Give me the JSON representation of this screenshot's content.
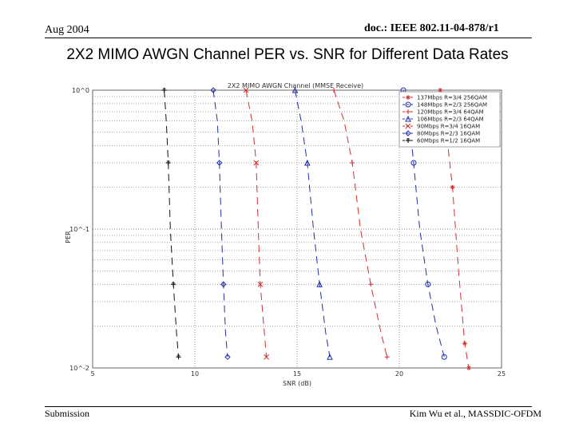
{
  "header": {
    "date": "Aug 2004",
    "doc": "doc.: IEEE 802.11-04-878/r1"
  },
  "slide_title": "2X2 MIMO AWGN Channel PER vs. SNR for Different Data Rates",
  "footer": {
    "left": "Submission",
    "right": "Kim Wu et al., MASSDIC-OFDM"
  },
  "colors": {
    "blue": "#1f2fa8",
    "red": "#d03030",
    "black": "#111111",
    "grid": "#555555"
  },
  "chart_data": {
    "type": "line",
    "title": "2X2 MIMO AWGN Channel (MMSE Receive)",
    "xlabel": "SNR (dB)",
    "ylabel": "PER",
    "xlim": [
      5,
      25
    ],
    "ylim_log10": [
      -2,
      0
    ],
    "x_ticks": [
      5,
      10,
      15,
      20,
      25
    ],
    "y_tick_labels": [
      "10^0",
      "10^-1",
      "10^-2"
    ],
    "y_tick_values": [
      1,
      0.1,
      0.01
    ],
    "grid": true,
    "legend_position": "top-right",
    "series": [
      {
        "name": "137Mbps R=3/4 256QAM",
        "color": "#d03030",
        "marker": "star",
        "points": [
          [
            22.0,
            1.0
          ],
          [
            22.3,
            0.5
          ],
          [
            22.6,
            0.2
          ],
          [
            22.9,
            0.05
          ],
          [
            23.2,
            0.015
          ],
          [
            23.4,
            0.01
          ]
        ]
      },
      {
        "name": "148Mbps R=2/3 256QAM",
        "color": "#1f2fa8",
        "marker": "circle",
        "points": [
          [
            20.2,
            1.0
          ],
          [
            20.5,
            0.6
          ],
          [
            20.7,
            0.3
          ],
          [
            21.0,
            0.1
          ],
          [
            21.4,
            0.04
          ],
          [
            21.8,
            0.02
          ],
          [
            22.2,
            0.012
          ]
        ]
      },
      {
        "name": "120Mbps R=3/4 64QAM",
        "color": "#d03030",
        "marker": "plus",
        "points": [
          [
            16.8,
            1.0
          ],
          [
            17.3,
            0.6
          ],
          [
            17.7,
            0.3
          ],
          [
            18.1,
            0.1
          ],
          [
            18.6,
            0.04
          ],
          [
            19.1,
            0.018
          ],
          [
            19.4,
            0.012
          ]
        ]
      },
      {
        "name": "106Mbps R=2/3 64QAM",
        "color": "#1f2fa8",
        "marker": "triangle",
        "points": [
          [
            14.9,
            1.0
          ],
          [
            15.2,
            0.6
          ],
          [
            15.5,
            0.3
          ],
          [
            15.8,
            0.1
          ],
          [
            16.1,
            0.04
          ],
          [
            16.4,
            0.018
          ],
          [
            16.6,
            0.012
          ]
        ]
      },
      {
        "name": "90Mbps R=3/4 16QAM",
        "color": "#d03030",
        "marker": "x",
        "points": [
          [
            12.5,
            1.0
          ],
          [
            12.8,
            0.6
          ],
          [
            13.0,
            0.3
          ],
          [
            13.1,
            0.1
          ],
          [
            13.2,
            0.04
          ],
          [
            13.4,
            0.018
          ],
          [
            13.5,
            0.012
          ]
        ]
      },
      {
        "name": "80Mbps R=2/3 16QAM",
        "color": "#1f2fa8",
        "marker": "diamond",
        "points": [
          [
            10.9,
            1.0
          ],
          [
            11.1,
            0.6
          ],
          [
            11.2,
            0.3
          ],
          [
            11.3,
            0.1
          ],
          [
            11.4,
            0.04
          ],
          [
            11.5,
            0.018
          ],
          [
            11.6,
            0.012
          ]
        ]
      },
      {
        "name": "60Mbps R=1/2 16QAM",
        "color": "#111111",
        "marker": "cross",
        "points": [
          [
            8.5,
            1.0
          ],
          [
            8.6,
            0.6
          ],
          [
            8.7,
            0.3
          ],
          [
            8.8,
            0.1
          ],
          [
            8.95,
            0.04
          ],
          [
            9.1,
            0.018
          ],
          [
            9.2,
            0.012
          ]
        ]
      }
    ]
  }
}
